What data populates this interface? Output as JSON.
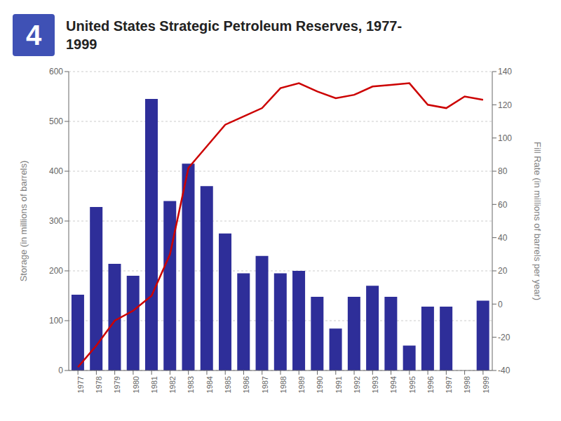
{
  "chart_data": {
    "type": "bar",
    "title": "United States Strategic Petroleum Reserves, 1977-\n1999",
    "annotations": [
      "4"
    ],
    "categories": [
      "1977",
      "1978",
      "1979",
      "1980",
      "1981",
      "1982",
      "1983",
      "1984",
      "1985",
      "1986",
      "1987",
      "1988",
      "1989",
      "1990",
      "1991",
      "1992",
      "1993",
      "1994",
      "1995",
      "1996",
      "1997",
      "1998",
      "1999"
    ],
    "series": [
      {
        "type": "bar",
        "color": "#2e2e99",
        "values": [
          152,
          328,
          214,
          190,
          545,
          340,
          415,
          370,
          275,
          195,
          230,
          195,
          200,
          148,
          84,
          148,
          170,
          148,
          50,
          128,
          128,
          0,
          140
        ]
      },
      {
        "type": "line",
        "color": "#cc0000",
        "axis": "y2",
        "values": [
          -38,
          -25,
          -10,
          -4,
          5,
          30,
          82,
          95,
          108,
          113,
          118,
          130,
          133,
          128,
          124,
          126,
          131,
          132,
          133,
          120,
          118,
          125,
          123
        ]
      }
    ],
    "ylabel": "Storage (in millions of barrels)",
    "y2label": "Fill Rate (in millions of barrels per year)",
    "ylim": [
      0,
      600
    ],
    "yticks": [
      0,
      100,
      200,
      300,
      400,
      500,
      600
    ],
    "y2lim": [
      -40,
      140
    ],
    "y2ticks": [
      -40,
      -20,
      0,
      20,
      40,
      60,
      80,
      100,
      120,
      140
    ],
    "grid": true
  }
}
